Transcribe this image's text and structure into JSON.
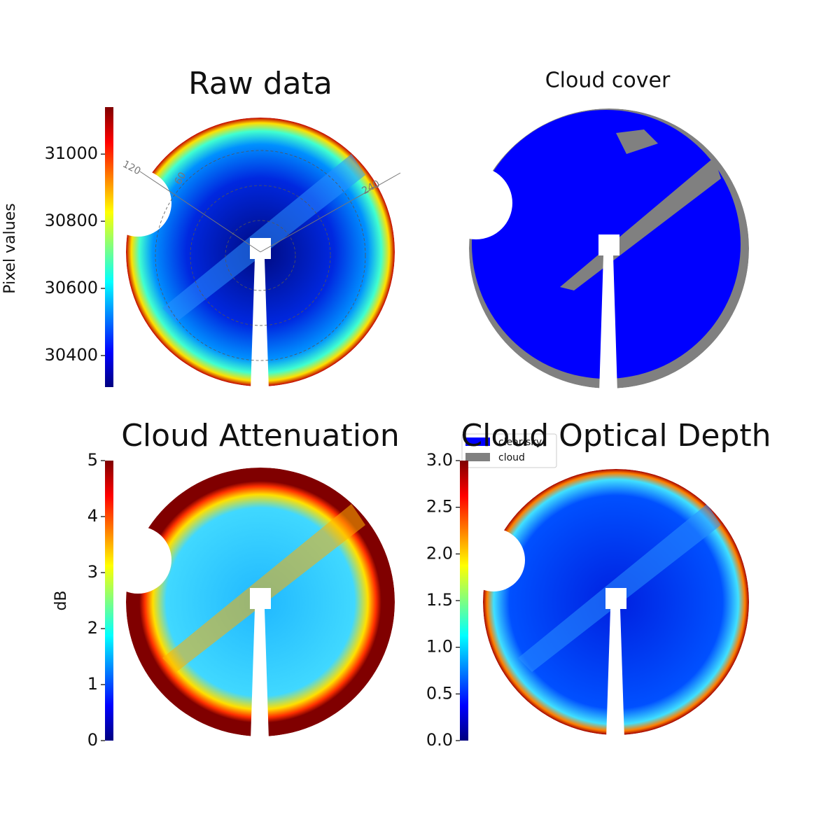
{
  "chart_data": [
    {
      "type": "image",
      "title": "Raw data",
      "clabel": "Pixel values",
      "clim": [
        30306,
        31140
      ],
      "cticks": [
        30400,
        30600,
        30800,
        31000
      ],
      "polar_labels": [
        "120",
        "60",
        "240"
      ]
    },
    {
      "type": "image",
      "title": "Cloud cover",
      "series": [
        {
          "name": "clear sky",
          "color": "#0000ff"
        },
        {
          "name": "cloud",
          "color": "#808080"
        }
      ]
    },
    {
      "type": "image",
      "title": "Cloud Attenuation",
      "clabel": "dB",
      "clim": [
        0,
        5
      ],
      "cticks": [
        0,
        1,
        2,
        3,
        4,
        5
      ]
    },
    {
      "type": "image",
      "title": "Cloud Optical Depth",
      "clim": [
        0,
        3
      ],
      "cticks": [
        {
          "value": 0,
          "label": "0.0"
        },
        {
          "value": 0.5,
          "label": "0.5"
        },
        {
          "value": 1,
          "label": "1.0"
        },
        {
          "value": 1.5,
          "label": "1.5"
        },
        {
          "value": 2,
          "label": "2.0"
        },
        {
          "value": 2.5,
          "label": "2.5"
        },
        {
          "value": 3,
          "label": "3.0"
        }
      ]
    }
  ]
}
